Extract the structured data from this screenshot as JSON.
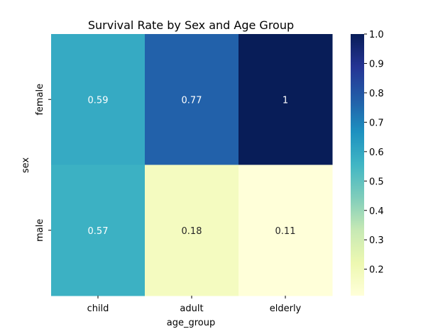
{
  "chart_data": {
    "type": "heatmap",
    "title": "Survival Rate by Sex and Age Group",
    "xlabel": "age_group",
    "ylabel": "sex",
    "x_categories": [
      "child",
      "adult",
      "elderly"
    ],
    "y_categories": [
      "female",
      "male"
    ],
    "values": [
      [
        0.59,
        0.77,
        1.0
      ],
      [
        0.57,
        0.18,
        0.11
      ]
    ],
    "annotations": [
      [
        "0.59",
        "0.77",
        "1"
      ],
      [
        "0.57",
        "0.18",
        "0.11"
      ]
    ],
    "colormap": "YlGnBu",
    "color_range": [
      0.11,
      1.0
    ],
    "colorbar_ticks": [
      "0.2",
      "0.3",
      "0.4",
      "0.5",
      "0.6",
      "0.7",
      "0.8",
      "0.9",
      "1.0"
    ],
    "colors": {
      "light_text": "#ffffff",
      "dark_text": "#262626"
    }
  }
}
